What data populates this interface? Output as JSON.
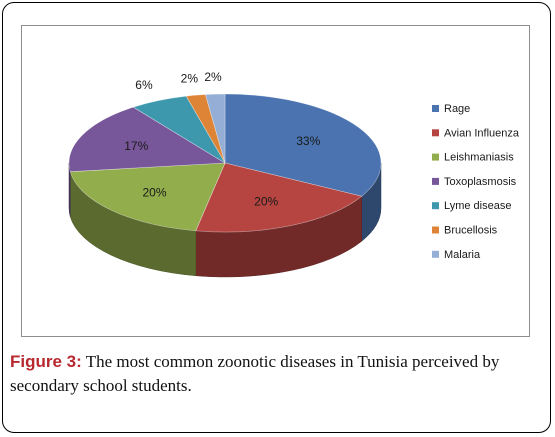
{
  "caption": {
    "label": "Figure 3:",
    "text": " The most common zoonotic diseases in Tunisia perceived by secondary school students."
  },
  "chart_data": {
    "type": "pie",
    "style": "3d",
    "legend_position": "right",
    "categories": [
      "Rage",
      "Avian Influenza",
      "Leishmaniasis",
      "Toxoplasmosis",
      "Lyme disease",
      "Brucellosis",
      "Malaria"
    ],
    "values": [
      33,
      20,
      20,
      17,
      6,
      2,
      2
    ],
    "labels": [
      "33%",
      "20%",
      "20%",
      "17%",
      "6%",
      "2%",
      "2%"
    ],
    "colors": [
      "#4a73b0",
      "#b64441",
      "#92ad4c",
      "#77569a",
      "#3d98ae",
      "#de8437",
      "#94aed6"
    ]
  }
}
